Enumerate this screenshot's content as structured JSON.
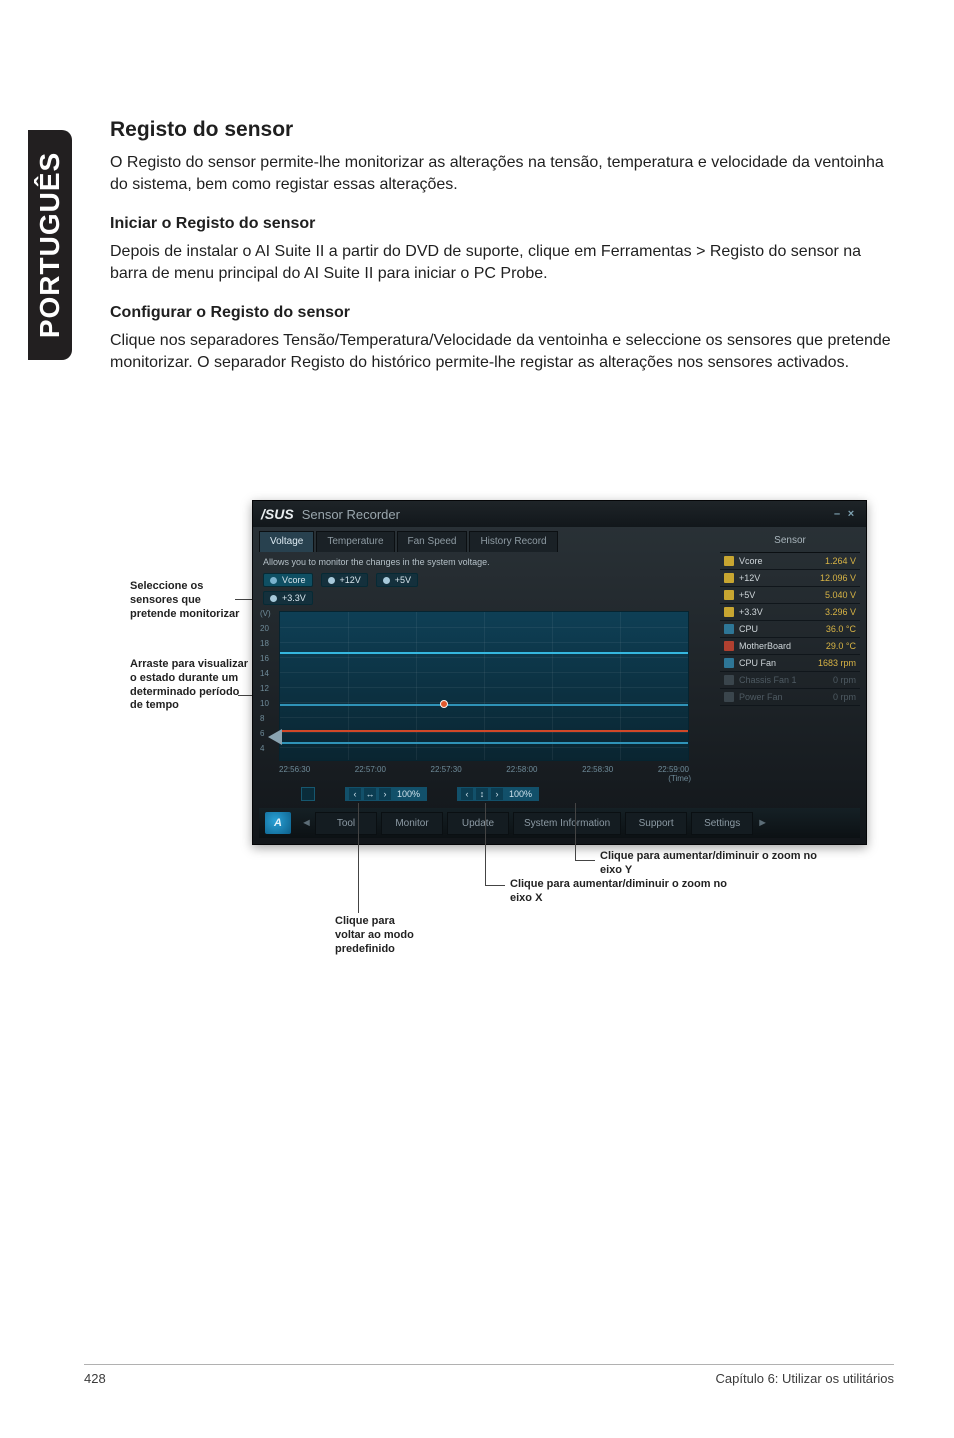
{
  "lang_tab": "PORTUGUÊS",
  "heading": "Registo do sensor",
  "intro": "O Registo do sensor permite-lhe monitorizar as alterações na tensão, temperatura e velocidade da ventoinha do sistema, bem como registar essas alterações.",
  "h2a": "Iniciar o Registo do sensor",
  "p2": "Depois de instalar o AI Suite II a partir do DVD de suporte, clique em Ferramentas > Registo do sensor na barra de menu principal do AI Suite II para iniciar o PC Probe.",
  "h2b": "Configurar o Registo do sensor",
  "p3": "Clique nos separadores Tensão/Temperatura/Velocidade da ventoinha e seleccione os sensores que pretende monitorizar. O separador Registo do histórico permite-lhe registar as alterações nos sensores activados.",
  "left_label_1": "Seleccione os sensores que pretende monitorizar",
  "left_label_2": "Arraste para visualizar o estado durante um determinado período de tempo",
  "window": {
    "logo": "/SUS",
    "title": "Sensor Recorder",
    "minimize": "–",
    "close": "×"
  },
  "tabs": {
    "voltage": "Voltage",
    "temperature": "Temperature",
    "fanspeed": "Fan Speed",
    "history": "History Record"
  },
  "sensor_header": "Sensor",
  "sensors": [
    {
      "ic": "yel",
      "name": "Vcore",
      "value": "1.264 V"
    },
    {
      "ic": "yel",
      "name": "+12V",
      "value": "12.096 V"
    },
    {
      "ic": "yel",
      "name": "+5V",
      "value": "5.040 V"
    },
    {
      "ic": "yel",
      "name": "+3.3V",
      "value": "3.296 V"
    },
    {
      "ic": "blue",
      "name": "CPU",
      "value": "36.0 °C"
    },
    {
      "ic": "red",
      "name": "MotherBoard",
      "value": "29.0 °C"
    },
    {
      "ic": "blue",
      "name": "CPU Fan",
      "value": "1683 rpm"
    },
    {
      "ic": "gray",
      "name": "Chassis Fan 1",
      "value": "0 rpm",
      "dim": true
    },
    {
      "ic": "gray",
      "name": "Power Fan",
      "value": "0 rpm",
      "dim": true
    }
  ],
  "hint": "Allows you to monitor the changes in the system voltage.",
  "pills": {
    "vcore": "Vcore",
    "p12": "+12V",
    "p5": "+5V",
    "p33": "+3.3V"
  },
  "yaxis_unit": "(V)",
  "yaxis": [
    "20",
    "18",
    "16",
    "14",
    "12",
    "10",
    "8",
    "6",
    "4",
    "2",
    "0"
  ],
  "time_ticks": [
    "22:56:30",
    "22:57:00",
    "22:57:30",
    "22:58:00",
    "22:58:30",
    "22:59:00"
  ],
  "time_label": "(Time)",
  "zoomx": "100%",
  "zoomy": "100%",
  "bottom_tabs": {
    "tool": "Tool",
    "monitor": "Monitor",
    "update": "Update",
    "sysinfo": "System Information",
    "support": "Support",
    "settings": "Settings"
  },
  "bottom_logo": "A",
  "callouts": {
    "zoomy": "Clique para aumentar/diminuir o zoom no eixo Y",
    "zoomx": "Clique para aumentar/diminuir o zoom no eixo X",
    "reset_a": "Clique para",
    "reset_b": "voltar ao modo",
    "reset_c": "predefinido"
  },
  "footer": {
    "page": "428",
    "chapter": "Capítulo 6: Utilizar os utilitários"
  },
  "colors": {
    "panel_bg_top": "#2b3338",
    "panel_bg_bot": "#12161a",
    "chart_bg_top": "#0e3f55",
    "chart_bg_bot": "#0a2531",
    "series1": "#35b7df",
    "series2": "#2f93b8",
    "vcore_series": "#d04828",
    "accent_yellow": "#d8b445"
  }
}
